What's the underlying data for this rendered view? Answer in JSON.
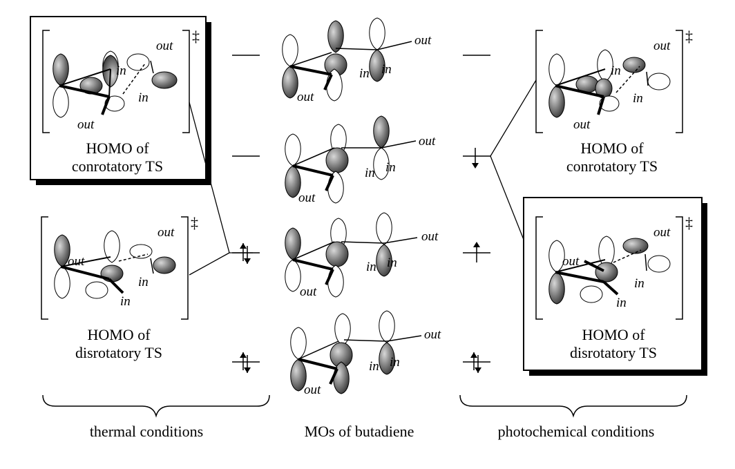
{
  "captions": {
    "left_top_line1": "HOMO of",
    "left_top_line2": "conrotatory TS",
    "left_bottom_line1": "HOMO of",
    "left_bottom_line2": "disrotatory TS",
    "right_top_line1": "HOMO of",
    "right_top_line2": "conrotatory TS",
    "right_bottom_line1": "HOMO of",
    "right_bottom_line2": "disrotatory TS"
  },
  "labels": {
    "out": "out",
    "in": "in",
    "dagger": "‡"
  },
  "footer": {
    "thermal": "thermal conditions",
    "mos": "MOs of butadiene",
    "photochemical": "photochemical conditions"
  },
  "colors": {
    "lobe_shaded": "#6e6e6e",
    "lobe_open": "#ffffff",
    "ink": "#000000"
  }
}
